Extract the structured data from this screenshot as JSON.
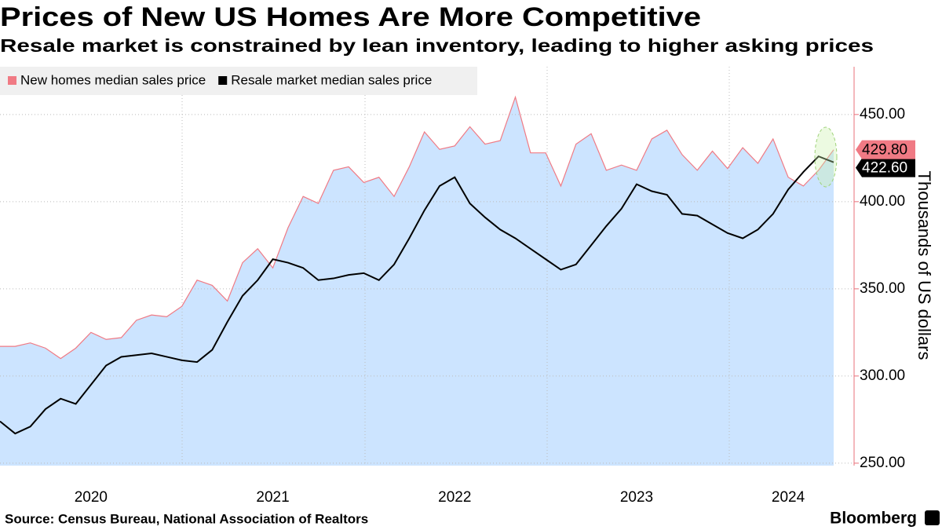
{
  "chart_data": {
    "type": "line",
    "title": "Prices of New US Homes Are More Competitive",
    "subtitle": "Resale market is constrained by lean inventory, leading to higher asking prices",
    "y_axis_label": "Thousands of US dollars",
    "source": "Source: Census Bureau, National Association of Realtors",
    "brand": "Bloomberg",
    "categories": [
      null,
      null,
      null,
      null,
      null,
      null,
      "2020",
      null,
      null,
      null,
      null,
      null,
      null,
      null,
      null,
      null,
      null,
      null,
      "2021",
      null,
      null,
      null,
      null,
      null,
      null,
      null,
      null,
      null,
      null,
      null,
      "2022",
      null,
      null,
      null,
      null,
      null,
      null,
      null,
      null,
      null,
      null,
      null,
      "2023",
      null,
      null,
      null,
      null,
      null,
      null,
      null,
      null,
      null,
      "2024",
      null,
      null,
      null
    ],
    "series": [
      {
        "name": "New homes median sales price",
        "color": "#f07a84",
        "fill": "#cce4ff",
        "values": [
          317,
          317,
          319,
          316,
          310,
          316,
          325,
          321,
          322,
          332,
          335,
          334,
          340,
          355,
          352,
          343,
          365,
          373,
          362,
          385,
          403,
          399,
          418,
          420,
          411,
          414,
          403,
          420,
          440,
          430,
          432,
          443,
          433,
          435,
          460,
          428,
          428,
          409,
          433,
          439,
          418,
          421,
          418,
          436,
          441,
          427,
          418,
          429,
          419,
          431,
          422,
          436,
          414,
          409,
          418,
          429.8
        ],
        "value_labels": [
          null,
          null,
          null,
          null,
          null,
          null,
          null,
          null,
          null,
          null,
          null,
          null,
          null,
          null,
          null,
          null,
          null,
          null,
          null,
          null,
          null,
          null,
          null,
          null,
          null,
          null,
          null,
          null,
          null,
          null,
          null,
          null,
          null,
          null,
          null,
          null,
          null,
          null,
          null,
          null,
          null,
          null,
          null,
          null,
          null,
          null,
          null,
          null,
          null,
          null,
          null,
          null,
          null,
          null,
          null,
          "429.80"
        ]
      },
      {
        "name": "Resale market median sales price",
        "color": "#000000",
        "values": [
          274,
          267,
          271,
          281,
          287,
          284,
          295,
          306,
          311,
          312,
          313,
          311,
          309,
          308,
          315,
          331,
          346,
          355,
          367,
          365,
          362,
          355,
          356,
          358,
          359,
          355,
          364,
          379,
          395,
          409,
          414,
          399,
          391,
          384,
          379,
          373,
          367,
          361,
          364,
          375,
          386,
          396,
          410,
          406,
          404,
          393,
          392,
          387,
          382,
          379,
          384,
          393,
          407,
          417,
          426,
          422.6
        ],
        "value_labels": [
          null,
          null,
          null,
          null,
          null,
          null,
          null,
          null,
          null,
          null,
          null,
          null,
          null,
          null,
          null,
          null,
          null,
          null,
          null,
          null,
          null,
          null,
          null,
          null,
          null,
          null,
          null,
          null,
          null,
          null,
          null,
          null,
          null,
          null,
          null,
          null,
          null,
          null,
          null,
          null,
          null,
          null,
          null,
          null,
          null,
          null,
          null,
          null,
          null,
          null,
          null,
          null,
          null,
          null,
          null,
          "422.60"
        ]
      }
    ],
    "ylim": [
      248.6,
      477.4
    ],
    "yticks": [
      {
        "value": 250,
        "label": "250.00"
      },
      {
        "value": 300,
        "label": "300.00"
      },
      {
        "value": 350,
        "label": "350.00"
      },
      {
        "value": 400,
        "label": "400.00"
      },
      {
        "value": 450,
        "label": "450.00"
      }
    ],
    "axis_color": "#e8707a",
    "grid": true
  }
}
